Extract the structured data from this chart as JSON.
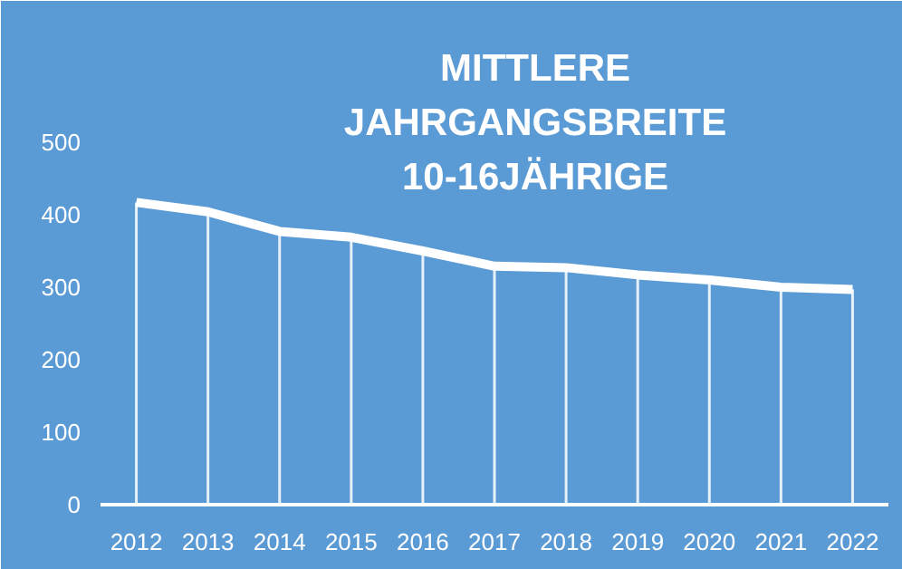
{
  "chart_data": {
    "type": "line",
    "title": "MITTLERE\nJAHRGANGSBREITE\n10-16JÄHRIGE",
    "categories": [
      "2012",
      "2013",
      "2014",
      "2015",
      "2016",
      "2017",
      "2018",
      "2019",
      "2020",
      "2021",
      "2022"
    ],
    "values": [
      417,
      404,
      377,
      369,
      350,
      329,
      327,
      317,
      310,
      300,
      297
    ],
    "errors": [
      [
        0,
        417
      ],
      [
        0,
        404
      ],
      [
        0,
        377
      ],
      [
        0,
        369
      ],
      [
        0,
        350
      ],
      [
        0,
        329
      ],
      [
        0,
        327
      ],
      [
        0,
        317
      ],
      [
        0,
        310
      ],
      [
        0,
        300
      ],
      [
        0,
        297
      ]
    ],
    "color": "#ffffff",
    "ylim": [
      0,
      690
    ],
    "yticks": [
      0,
      100,
      200,
      300,
      400,
      500
    ],
    "grid": false,
    "marker": "none",
    "line_style": "solid"
  }
}
